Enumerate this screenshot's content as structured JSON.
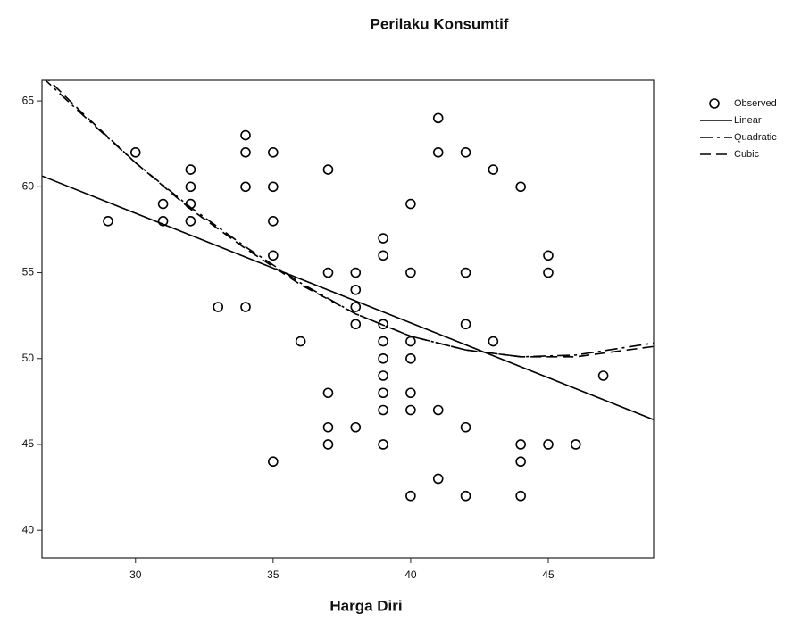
{
  "chart_data": {
    "type": "scatter",
    "title": "Perilaku Konsumtif",
    "x_label": "Harga Diri",
    "xlim": [
      26.6,
      48.83
    ],
    "ylim": [
      38.4,
      66.2
    ],
    "xticks": [
      30,
      35,
      40,
      45
    ],
    "yticks": [
      40,
      45,
      50,
      55,
      60,
      65
    ],
    "legend": "upper right outside",
    "series": [
      {
        "name": "Observed",
        "color": "#000000",
        "style": "marker",
        "x": [
          29,
          30,
          31,
          31,
          32,
          32,
          32,
          32,
          33,
          34,
          34,
          34,
          34,
          35,
          35,
          35,
          35,
          35,
          36,
          37,
          37,
          37,
          37,
          37,
          38,
          38,
          38,
          38,
          38,
          39,
          39,
          39,
          39,
          39,
          39,
          39,
          39,
          39,
          40,
          40,
          40,
          40,
          40,
          40,
          40,
          41,
          41,
          41,
          41,
          42,
          42,
          42,
          42,
          42,
          43,
          43,
          44,
          44,
          44,
          44,
          45,
          45,
          45,
          46,
          47
        ],
        "values": [
          58,
          62,
          59,
          58,
          61,
          60,
          59,
          58,
          53,
          63,
          62,
          60,
          53,
          62,
          60,
          58,
          56,
          44,
          51,
          61,
          55,
          48,
          46,
          45,
          55,
          54,
          53,
          52,
          46,
          57,
          56,
          52,
          51,
          50,
          49,
          48,
          47,
          45,
          59,
          55,
          51,
          50,
          48,
          47,
          42,
          64,
          62,
          47,
          43,
          62,
          55,
          52,
          46,
          42,
          61,
          51,
          60,
          45,
          44,
          42,
          56,
          55,
          45,
          45,
          49
        ]
      },
      {
        "name": "Linear",
        "color": "#000000",
        "style": "solid",
        "x": [
          26.6,
          48.83
        ],
        "values": [
          60.63,
          46.44
        ]
      },
      {
        "name": "Quadratic",
        "color": "#000000",
        "style": "dashdot",
        "x": [
          26.6,
          28,
          30,
          32,
          34,
          36,
          38,
          40,
          42,
          44,
          46,
          48.83
        ],
        "values": [
          66.4,
          64.3,
          61.4,
          58.8,
          56.5,
          54.4,
          52.6,
          51.3,
          50.5,
          50.1,
          50.2,
          50.9
        ]
      },
      {
        "name": "Cubic",
        "color": "#000000",
        "style": "dashed",
        "x": [
          26.6,
          28,
          30,
          32,
          34,
          36,
          38,
          40,
          42,
          44,
          46,
          48.83
        ],
        "values": [
          66.6,
          64.4,
          61.4,
          58.7,
          56.4,
          54.3,
          52.6,
          51.3,
          50.5,
          50.1,
          50.1,
          50.7
        ]
      }
    ]
  }
}
